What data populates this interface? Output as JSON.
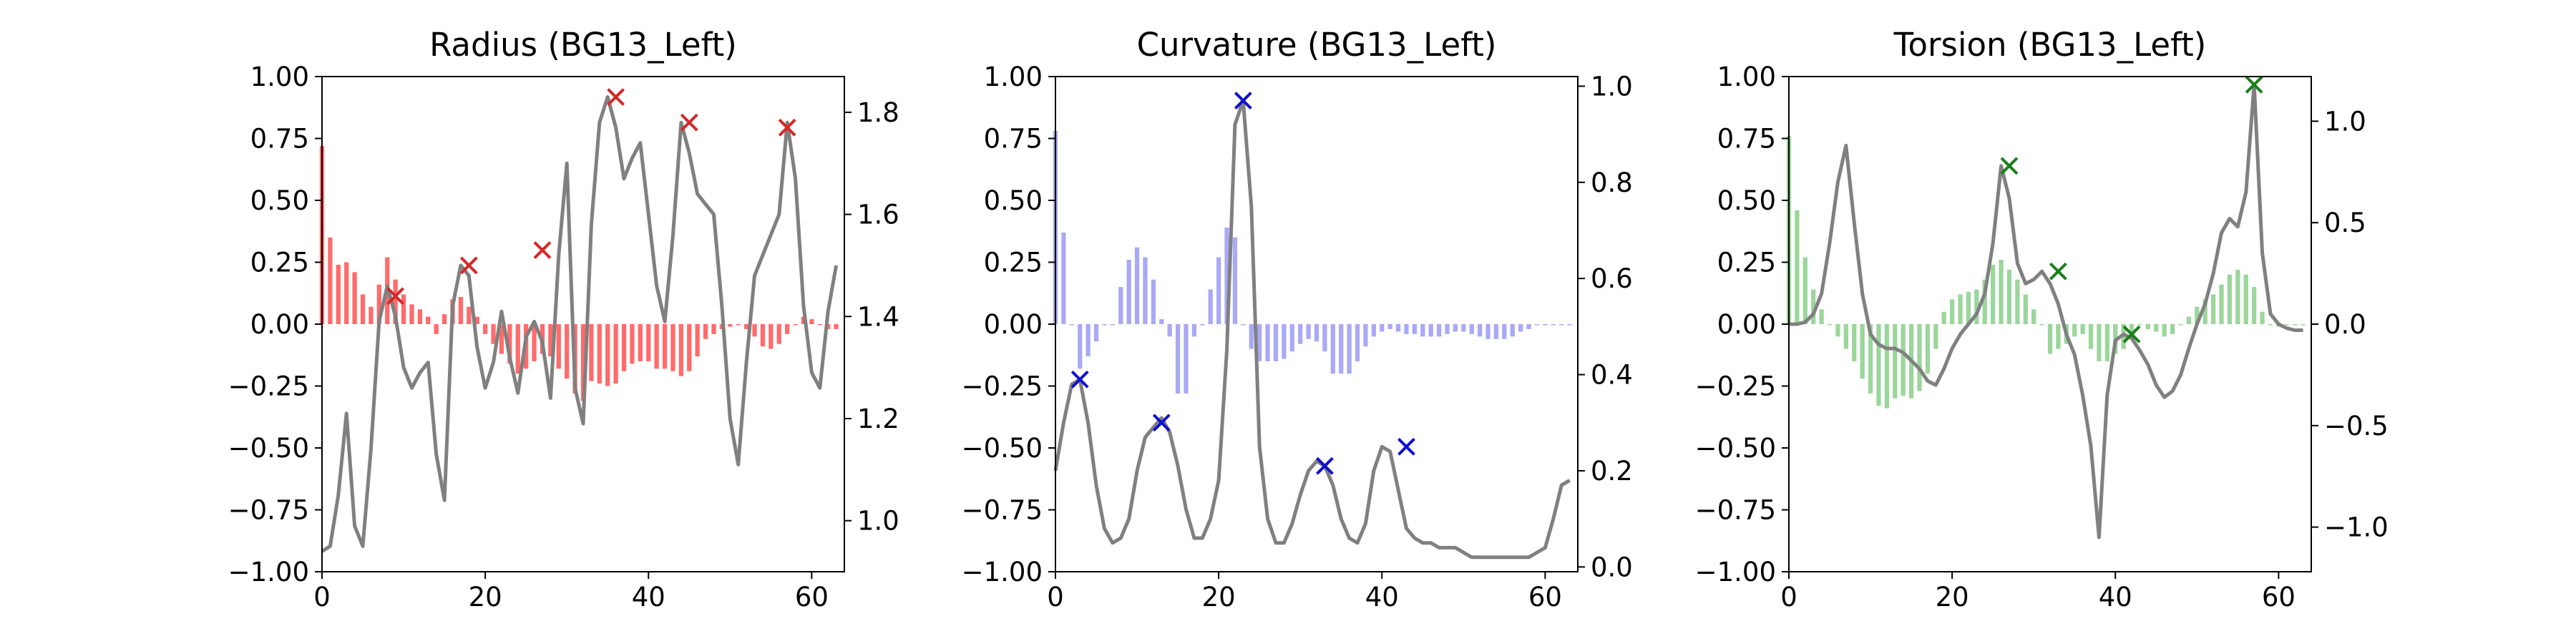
{
  "colors": {
    "radius": "#ff6b6b",
    "radius_marker": "#d62728",
    "curvature": "#a9a9f5",
    "curvature_marker": "#1010d0",
    "torsion": "#9bd69b",
    "torsion_marker": "#1a7f1a",
    "line": "#808080"
  },
  "chart_data": [
    {
      "type": "bar",
      "title": "Radius (BG13_Left)",
      "x_ticks": [
        0,
        20,
        40,
        60
      ],
      "xlim": [
        0,
        64
      ],
      "ylim": [
        -1.0,
        1.0
      ],
      "y_ticks": [
        "−1.00",
        "−0.75",
        "−0.50",
        "−0.25",
        "0.00",
        "0.25",
        "0.50",
        "0.75",
        "1.00"
      ],
      "y2lim": [
        0.9,
        1.87
      ],
      "y2_ticks": [
        "1.0",
        "1.2",
        "1.4",
        "1.6",
        "1.8"
      ],
      "bars": {
        "x": [
          0,
          1,
          2,
          3,
          4,
          5,
          6,
          7,
          8,
          9,
          10,
          11,
          12,
          13,
          14,
          15,
          16,
          17,
          18,
          19,
          20,
          21,
          22,
          23,
          24,
          25,
          26,
          27,
          28,
          29,
          30,
          31,
          32,
          33,
          34,
          35,
          36,
          37,
          38,
          39,
          40,
          41,
          42,
          43,
          44,
          45,
          46,
          47,
          48,
          49,
          50,
          51,
          52,
          53,
          54,
          55,
          56,
          57,
          58,
          59,
          60,
          61,
          62,
          63
        ],
        "values": [
          0.72,
          0.35,
          0.24,
          0.25,
          0.21,
          0.12,
          0.07,
          0.16,
          0.27,
          0.18,
          0.12,
          0.08,
          0.06,
          0.03,
          -0.04,
          0.04,
          0.1,
          0.11,
          0.07,
          0.03,
          -0.04,
          -0.08,
          -0.12,
          -0.16,
          -0.2,
          -0.18,
          -0.15,
          -0.12,
          -0.13,
          -0.18,
          -0.22,
          -0.28,
          -0.31,
          -0.23,
          -0.24,
          -0.25,
          -0.24,
          -0.19,
          -0.16,
          -0.15,
          -0.15,
          -0.18,
          -0.18,
          -0.19,
          -0.21,
          -0.19,
          -0.13,
          -0.06,
          -0.04,
          -0.02,
          -0.01,
          0.0,
          -0.02,
          -0.05,
          -0.09,
          -0.1,
          -0.08,
          -0.04,
          0.0,
          0.03,
          0.02,
          0.0,
          -0.02,
          -0.02
        ]
      },
      "line": {
        "x": [
          0,
          1,
          2,
          3,
          4,
          5,
          6,
          7,
          8,
          9,
          10,
          11,
          12,
          13,
          14,
          15,
          16,
          17,
          18,
          19,
          20,
          21,
          22,
          23,
          24,
          25,
          26,
          27,
          28,
          29,
          30,
          31,
          32,
          33,
          34,
          35,
          36,
          37,
          38,
          39,
          40,
          41,
          42,
          43,
          44,
          45,
          46,
          47,
          48,
          49,
          50,
          51,
          52,
          53,
          54,
          55,
          56,
          57,
          58,
          59,
          60,
          61,
          62,
          63
        ],
        "values": [
          0.94,
          0.95,
          1.05,
          1.21,
          0.99,
          0.95,
          1.14,
          1.39,
          1.46,
          1.4,
          1.3,
          1.26,
          1.29,
          1.31,
          1.13,
          1.04,
          1.42,
          1.5,
          1.48,
          1.34,
          1.26,
          1.31,
          1.41,
          1.32,
          1.25,
          1.36,
          1.39,
          1.35,
          1.24,
          1.52,
          1.7,
          1.26,
          1.19,
          1.58,
          1.78,
          1.83,
          1.77,
          1.67,
          1.71,
          1.74,
          1.6,
          1.46,
          1.39,
          1.56,
          1.78,
          1.72,
          1.64,
          1.62,
          1.6,
          1.42,
          1.2,
          1.11,
          1.31,
          1.48,
          1.52,
          1.56,
          1.6,
          1.78,
          1.67,
          1.42,
          1.29,
          1.26,
          1.41,
          1.5
        ]
      },
      "markers": {
        "x": [
          9,
          18,
          27,
          36,
          45,
          57
        ],
        "values": [
          1.44,
          1.5,
          1.53,
          1.83,
          1.78,
          1.77
        ]
      }
    },
    {
      "type": "bar",
      "title": "Curvature (BG13_Left)",
      "x_ticks": [
        0,
        20,
        40,
        60
      ],
      "xlim": [
        0,
        64
      ],
      "ylim": [
        -1.0,
        1.0
      ],
      "y_ticks": [
        "−1.00",
        "−0.75",
        "−0.50",
        "−0.25",
        "0.00",
        "0.25",
        "0.50",
        "0.75",
        "1.00"
      ],
      "y2lim": [
        -0.01,
        1.02
      ],
      "y2_ticks": [
        "0.0",
        "0.2",
        "0.4",
        "0.6",
        "0.8",
        "1.0"
      ],
      "bars": {
        "x": [
          0,
          1,
          2,
          3,
          4,
          5,
          6,
          7,
          8,
          9,
          10,
          11,
          12,
          13,
          14,
          15,
          16,
          17,
          18,
          19,
          20,
          21,
          22,
          23,
          24,
          25,
          26,
          27,
          28,
          29,
          30,
          31,
          32,
          33,
          34,
          35,
          36,
          37,
          38,
          39,
          40,
          41,
          42,
          43,
          44,
          45,
          46,
          47,
          48,
          49,
          50,
          51,
          52,
          53,
          54,
          55,
          56,
          57,
          58,
          59,
          60,
          61,
          62,
          63
        ],
        "values": [
          0.78,
          0.37,
          0.0,
          -0.18,
          -0.13,
          -0.07,
          0.0,
          0.0,
          0.15,
          0.26,
          0.31,
          0.27,
          0.18,
          0.02,
          -0.05,
          -0.28,
          -0.28,
          -0.05,
          0.0,
          0.14,
          0.27,
          0.39,
          0.35,
          0.0,
          -0.1,
          -0.15,
          -0.15,
          -0.15,
          -0.14,
          -0.11,
          -0.08,
          -0.06,
          -0.07,
          -0.11,
          -0.2,
          -0.2,
          -0.2,
          -0.15,
          -0.09,
          -0.05,
          -0.03,
          -0.02,
          -0.03,
          -0.04,
          -0.04,
          -0.05,
          -0.05,
          -0.05,
          -0.04,
          -0.03,
          -0.03,
          -0.04,
          -0.05,
          -0.06,
          -0.06,
          -0.06,
          -0.05,
          -0.03,
          -0.02,
          0.0,
          0.0,
          0.0,
          0.0,
          0.0
        ]
      },
      "line": {
        "x": [
          0,
          1,
          2,
          3,
          4,
          5,
          6,
          7,
          8,
          9,
          10,
          11,
          12,
          13,
          14,
          15,
          16,
          17,
          18,
          19,
          20,
          21,
          22,
          23,
          24,
          25,
          26,
          27,
          28,
          29,
          30,
          31,
          32,
          33,
          34,
          35,
          36,
          37,
          38,
          39,
          40,
          41,
          42,
          43,
          44,
          45,
          46,
          47,
          48,
          49,
          50,
          51,
          52,
          53,
          54,
          55,
          56,
          57,
          58,
          59,
          60,
          61,
          62,
          63
        ],
        "values": [
          0.2,
          0.3,
          0.38,
          0.39,
          0.3,
          0.17,
          0.08,
          0.05,
          0.06,
          0.1,
          0.2,
          0.27,
          0.29,
          0.31,
          0.28,
          0.21,
          0.12,
          0.06,
          0.06,
          0.1,
          0.18,
          0.45,
          0.92,
          0.97,
          0.75,
          0.25,
          0.1,
          0.05,
          0.05,
          0.09,
          0.15,
          0.2,
          0.22,
          0.21,
          0.17,
          0.1,
          0.06,
          0.05,
          0.09,
          0.2,
          0.25,
          0.24,
          0.16,
          0.08,
          0.06,
          0.05,
          0.05,
          0.04,
          0.04,
          0.04,
          0.03,
          0.02,
          0.02,
          0.02,
          0.02,
          0.02,
          0.02,
          0.02,
          0.02,
          0.03,
          0.04,
          0.1,
          0.17,
          0.18
        ]
      },
      "markers": {
        "x": [
          3,
          13,
          23,
          33,
          43
        ],
        "values": [
          0.39,
          0.3,
          0.97,
          0.21,
          0.25
        ]
      }
    },
    {
      "type": "bar",
      "title": "Torsion (BG13_Left)",
      "x_ticks": [
        0,
        20,
        40,
        60
      ],
      "xlim": [
        0,
        64
      ],
      "ylim": [
        -1.0,
        1.0
      ],
      "y_ticks": [
        "−1.00",
        "−0.75",
        "−0.50",
        "−0.25",
        "0.00",
        "0.25",
        "0.50",
        "0.75",
        "1.00"
      ],
      "y2lim": [
        -1.22,
        1.22
      ],
      "y2_ticks": [
        "−1.0",
        "−0.5",
        "0.0",
        "0.5",
        "1.0"
      ],
      "bars": {
        "x": [
          0,
          1,
          2,
          3,
          4,
          5,
          6,
          7,
          8,
          9,
          10,
          11,
          12,
          13,
          14,
          15,
          16,
          17,
          18,
          19,
          20,
          21,
          22,
          23,
          24,
          25,
          26,
          27,
          28,
          29,
          30,
          31,
          32,
          33,
          34,
          35,
          36,
          37,
          38,
          39,
          40,
          41,
          42,
          43,
          44,
          45,
          46,
          47,
          48,
          49,
          50,
          51,
          52,
          53,
          54,
          55,
          56,
          57,
          58,
          59,
          60,
          61,
          62,
          63
        ],
        "values": [
          0.76,
          0.46,
          0.27,
          0.14,
          0.06,
          0.0,
          -0.05,
          -0.1,
          -0.15,
          -0.22,
          -0.28,
          -0.33,
          -0.34,
          -0.3,
          -0.29,
          -0.3,
          -0.27,
          -0.2,
          -0.1,
          0.05,
          0.1,
          0.12,
          0.13,
          0.14,
          0.18,
          0.24,
          0.26,
          0.22,
          0.18,
          0.12,
          0.06,
          0.0,
          -0.12,
          -0.1,
          -0.08,
          -0.05,
          -0.04,
          -0.1,
          -0.15,
          -0.15,
          -0.12,
          -0.1,
          -0.05,
          0.0,
          -0.02,
          -0.03,
          -0.05,
          -0.04,
          0.0,
          0.03,
          0.07,
          0.1,
          0.12,
          0.16,
          0.2,
          0.22,
          0.2,
          0.15,
          0.05,
          0.0,
          -0.01,
          0.0,
          0.0,
          0.0
        ]
      },
      "line": {
        "x": [
          0,
          1,
          2,
          3,
          4,
          5,
          6,
          7,
          8,
          9,
          10,
          11,
          12,
          13,
          14,
          15,
          16,
          17,
          18,
          19,
          20,
          21,
          22,
          23,
          24,
          25,
          26,
          27,
          28,
          29,
          30,
          31,
          32,
          33,
          34,
          35,
          36,
          37,
          38,
          39,
          40,
          41,
          42,
          43,
          44,
          45,
          46,
          47,
          48,
          49,
          50,
          51,
          52,
          53,
          54,
          55,
          56,
          57,
          58,
          59,
          60,
          61,
          62,
          63
        ],
        "values": [
          0.0,
          0.0,
          0.01,
          0.05,
          0.15,
          0.4,
          0.7,
          0.88,
          0.5,
          0.15,
          -0.05,
          -0.1,
          -0.12,
          -0.12,
          -0.14,
          -0.18,
          -0.22,
          -0.28,
          -0.3,
          -0.22,
          -0.12,
          -0.05,
          0.0,
          0.05,
          0.15,
          0.4,
          0.78,
          0.62,
          0.3,
          0.2,
          0.22,
          0.26,
          0.2,
          0.1,
          -0.05,
          -0.15,
          -0.35,
          -0.6,
          -1.05,
          -0.35,
          -0.08,
          -0.05,
          -0.07,
          -0.13,
          -0.2,
          -0.3,
          -0.36,
          -0.33,
          -0.25,
          -0.12,
          0.0,
          0.1,
          0.25,
          0.45,
          0.52,
          0.48,
          0.65,
          1.18,
          0.35,
          0.05,
          0.0,
          -0.02,
          -0.03,
          -0.03
        ]
      },
      "markers": {
        "x": [
          27,
          33,
          42,
          57
        ],
        "values": [
          0.78,
          0.26,
          -0.05,
          1.18
        ]
      }
    }
  ]
}
